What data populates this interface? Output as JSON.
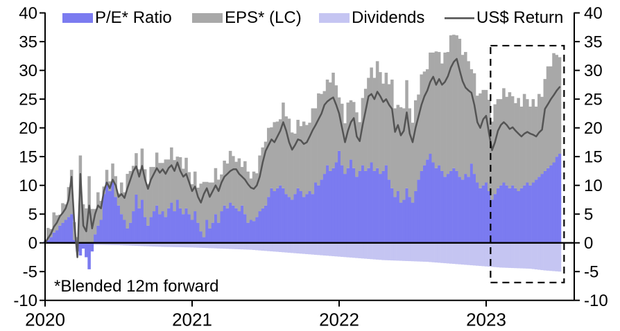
{
  "legend": {
    "pe": "P/E* Ratio",
    "eps": "EPS* (LC)",
    "dividends": "Dividends",
    "ret": "US$ Return"
  },
  "footnote": "*Blended 12m forward",
  "colors": {
    "pe": "#7b7bf0",
    "eps": "#a8a8a8",
    "dividends": "#c5c5f2",
    "line": "#545454",
    "axis": "#000000"
  },
  "chart_data": {
    "type": "bar",
    "subtype": "stacked-bars-with-line",
    "title": "",
    "xlabel": "",
    "ylabel": "",
    "ylim": [
      -10,
      40
    ],
    "xlim": [
      2020.0,
      2023.6
    ],
    "grid": false,
    "legend_position": "top",
    "yticks": [
      40,
      35,
      30,
      25,
      20,
      15,
      10,
      5,
      0,
      -5,
      -10
    ],
    "xticks": [
      "2020",
      "2021",
      "2022",
      "2023"
    ],
    "xtick_years": [
      2020,
      2021,
      2022,
      2023
    ],
    "x_start": 2020.0,
    "x_step": 0.02,
    "highlight_box": {
      "x0": 2023.03,
      "x1": 2023.53,
      "y0": -6.9,
      "y1": 34.3
    },
    "series": [
      {
        "name": "P/E* Ratio",
        "type": "bar",
        "stack": "positive",
        "values": [
          0.2,
          0.5,
          1,
          1.8,
          2.2,
          3,
          3.5,
          4,
          4.5,
          5,
          0.5,
          -1.5,
          -2.2,
          -1,
          -2.5,
          -4.6,
          -1.5,
          1.5,
          3,
          4,
          8.5,
          10.5,
          9,
          10.6,
          8,
          6.5,
          5,
          4,
          2.5,
          3.5,
          5.5,
          8.4,
          6,
          7.5,
          4.5,
          3,
          4.5,
          5.5,
          6.5,
          5,
          5.5,
          4.5,
          6,
          7,
          5.5,
          7.5,
          6,
          5,
          6,
          5,
          4,
          5.5,
          3.5,
          2,
          1,
          4,
          2.5,
          3.5,
          5,
          3.5,
          5.5,
          6.5,
          6,
          7,
          6.5,
          6,
          5.5,
          6.5,
          5,
          3.5,
          4,
          3.8,
          4.5,
          5.5,
          6,
          6.5,
          8,
          9.5,
          9,
          9.5,
          10,
          9.5,
          8.5,
          8,
          7.5,
          8.5,
          9.5,
          9,
          8,
          8.5,
          9,
          8.5,
          10.5,
          10,
          11,
          12,
          13.5,
          12.5,
          13,
          14,
          16,
          13.5,
          12,
          13,
          14.5,
          13,
          11.5,
          12.5,
          13.5,
          12.5,
          13,
          14,
          12.5,
          13,
          12,
          12.5,
          13.5,
          11,
          9.5,
          8,
          9,
          7,
          7.5,
          9.5,
          8,
          7,
          9,
          11,
          12.5,
          13.5,
          14.5,
          15.5,
          14,
          13,
          13.5,
          12.5,
          11.5,
          12,
          12.5,
          13,
          12.5,
          11.5,
          11,
          12,
          11.5,
          13.8,
          12,
          10.5,
          9.5,
          10,
          10.5,
          9,
          7.5,
          8.5,
          9.5,
          10,
          10.5,
          10,
          9.5,
          10,
          9.5,
          9,
          9.5,
          10,
          10.5,
          10,
          10.5,
          11,
          11.5,
          12,
          12.5,
          13,
          13.5,
          14,
          15,
          15.5
        ]
      },
      {
        "name": "EPS* (LC)",
        "type": "bar",
        "stack": "positive",
        "values": [
          0.2,
          2.1,
          1.4,
          3.5,
          2.6,
          1.9,
          3.4,
          2.7,
          5.2,
          7.7,
          3.1,
          1,
          15.2,
          6.7,
          6,
          11.6,
          5.9,
          4.4,
          5.8,
          3.3,
          1.3,
          2.2,
          1.7,
          3.2,
          3.6,
          2.1,
          5.5,
          4.8,
          9.5,
          9,
          7.9,
          7.2,
          6.8,
          8.9,
          8.3,
          7.2,
          8.7,
          7.7,
          9.2,
          8.9,
          8.4,
          10,
          8.5,
          9.6,
          8.9,
          7.5,
          8.9,
          7.9,
          8.8,
          7.3,
          6.2,
          6.9,
          6.1,
          8.3,
          9.6,
          6.6,
          8,
          7,
          8,
          7.5,
          6.4,
          7.8,
          7.8,
          9,
          8.6,
          8.1,
          9.2,
          6.7,
          9.2,
          8.9,
          7.2,
          8.6,
          7.6,
          9.7,
          10.6,
          11.1,
          12,
          10.6,
          12,
          11.6,
          11.5,
          14.9,
          13.5,
          13.6,
          11.7,
          10.5,
          11.9,
          11.3,
          13.1,
          12,
          11.9,
          14.9,
          12.9,
          16,
          14.9,
          14.4,
          14.9,
          15.4,
          16.6,
          13.4,
          9.3,
          10.7,
          8.8,
          11.4,
          10.3,
          11.5,
          11.2,
          8.5,
          11.7,
          14.3,
          15.7,
          16.5,
          16.2,
          18.6,
          17.7,
          15.2,
          16.1,
          16.6,
          18.9,
          15.4,
          15,
          16.6,
          15.9,
          18.8,
          15.4,
          13.9,
          15.8,
          14.8,
          16.8,
          16.3,
          15.7,
          17.6,
          19.1,
          20.3,
          19.7,
          18.7,
          21.6,
          21.2,
          23.6,
          23.2,
          23.6,
          24,
          21.7,
          21.2,
          20.1,
          16.4,
          17.5,
          15.1,
          16.5,
          16.6,
          16.1,
          15.9,
          13.6,
          15.6,
          15.5,
          15,
          16.4,
          15.4,
          16.7,
          15.5,
          14.8,
          16.2,
          14.2,
          15.9,
          14.5,
          13.7,
          14.5,
          12.7,
          14.4,
          13.4,
          16,
          17.7,
          17.2,
          19,
          17.7,
          16.8
        ]
      },
      {
        "name": "Dividends",
        "type": "bar",
        "stack": "none",
        "values": [
          0,
          -0.02,
          -0.04,
          -0.06,
          -0.08,
          -0.1,
          -0.12,
          -0.14,
          -0.16,
          -0.18,
          -0.2,
          -0.22,
          -0.24,
          -0.26,
          -0.28,
          -0.3,
          -0.31,
          -0.32,
          -0.33,
          -0.34,
          -0.35,
          -0.36,
          -0.37,
          -0.38,
          -0.39,
          -0.4,
          -0.42,
          -0.44,
          -0.46,
          -0.48,
          -0.5,
          -0.52,
          -0.54,
          -0.56,
          -0.58,
          -0.6,
          -0.62,
          -0.64,
          -0.66,
          -0.68,
          -0.7,
          -0.71,
          -0.72,
          -0.73,
          -0.74,
          -0.75,
          -0.76,
          -0.77,
          -0.78,
          -0.79,
          -0.8,
          -0.82,
          -0.84,
          -0.86,
          -0.88,
          -0.9,
          -0.92,
          -0.94,
          -0.96,
          -0.98,
          -1,
          -1.02,
          -1.04,
          -1.06,
          -1.08,
          -1.1,
          -1.12,
          -1.14,
          -1.16,
          -1.18,
          -1.2,
          -1.24,
          -1.28,
          -1.32,
          -1.36,
          -1.4,
          -1.44,
          -1.48,
          -1.52,
          -1.56,
          -1.6,
          -1.64,
          -1.68,
          -1.72,
          -1.76,
          -1.8,
          -1.84,
          -1.88,
          -1.92,
          -1.96,
          -2,
          -2.04,
          -2.08,
          -2.12,
          -2.16,
          -2.2,
          -2.24,
          -2.28,
          -2.32,
          -2.36,
          -2.4,
          -2.44,
          -2.48,
          -2.52,
          -2.56,
          -2.6,
          -2.64,
          -2.68,
          -2.72,
          -2.76,
          -2.8,
          -2.84,
          -2.88,
          -2.92,
          -2.96,
          -3,
          -3.02,
          -3.04,
          -3.06,
          -3.08,
          -3.1,
          -3.12,
          -3.14,
          -3.16,
          -3.18,
          -3.2,
          -3.22,
          -3.24,
          -3.26,
          -3.28,
          -3.3,
          -3.34,
          -3.38,
          -3.42,
          -3.46,
          -3.5,
          -3.54,
          -3.58,
          -3.62,
          -3.66,
          -3.7,
          -3.74,
          -3.78,
          -3.82,
          -3.86,
          -3.9,
          -3.94,
          -3.98,
          -4.02,
          -4.06,
          -4.1,
          -4.14,
          -4.18,
          -4.22,
          -4.26,
          -4.3,
          -4.32,
          -4.34,
          -4.36,
          -4.38,
          -4.4,
          -4.42,
          -4.44,
          -4.46,
          -4.48,
          -4.5,
          -4.56,
          -4.62,
          -4.68,
          -4.74,
          -4.8,
          -4.84,
          -4.88,
          -4.92,
          -4.96,
          -5
        ]
      },
      {
        "name": "US$ Return",
        "type": "line",
        "values": [
          0,
          0.8,
          1.6,
          2.8,
          3.5,
          4.6,
          5.2,
          6,
          7.5,
          11.5,
          3,
          -2.5,
          12,
          3,
          2,
          6.5,
          2.5,
          5,
          6.5,
          6,
          9,
          10.5,
          9.5,
          11,
          10,
          8,
          8.5,
          7.8,
          9.5,
          11,
          12.5,
          13.3,
          11.5,
          13.4,
          11,
          9.4,
          11,
          12,
          13,
          12.2,
          12.8,
          12,
          13,
          13.5,
          12.5,
          14,
          12.5,
          11.5,
          12,
          10.5,
          9,
          9.8,
          8,
          7,
          8.5,
          9.5,
          8,
          9,
          10,
          9,
          10.5,
          11.5,
          12,
          12.5,
          12.8,
          12.8,
          12,
          11.5,
          11,
          10.2,
          9.6,
          9.4,
          10,
          11.5,
          14,
          16,
          17,
          18,
          17.5,
          18.5,
          19.5,
          21,
          19.5,
          17.5,
          16.2,
          17,
          18,
          17.8,
          17.2,
          17.5,
          18.5,
          19.6,
          20.5,
          21.5,
          22.5,
          24,
          24.6,
          25,
          25.3,
          24,
          22.5,
          20,
          17.5,
          19.5,
          21,
          21.7,
          18.5,
          17.7,
          20.5,
          23,
          25.5,
          25.9,
          25,
          26.3,
          25.5,
          24.5,
          25,
          24,
          23.3,
          19.3,
          20.5,
          18.7,
          19.5,
          22.7,
          19,
          17.5,
          20,
          22,
          24,
          25.5,
          26.5,
          28,
          28.9,
          27.5,
          28.5,
          27.5,
          28,
          29,
          30.5,
          31.5,
          32,
          30,
          28.1,
          27,
          26.5,
          26.1,
          24,
          21,
          20,
          21.5,
          22.1,
          19,
          16.1,
          17.5,
          19.5,
          20.5,
          21,
          20.5,
          19.8,
          20.1,
          19.5,
          19,
          18.5,
          19,
          19.3,
          19,
          18.8,
          18.5,
          19.2,
          19.7,
          23.3,
          24.1,
          25,
          25.7,
          26.5,
          27.1
        ]
      }
    ]
  }
}
